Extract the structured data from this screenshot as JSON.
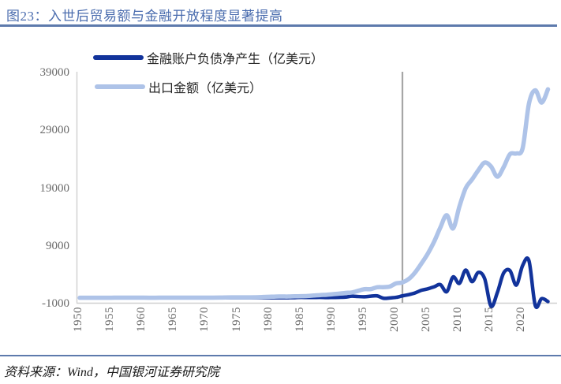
{
  "header": {
    "title": "图23：入世后贸易额与金融开放程度显著提高"
  },
  "footer": {
    "source": "资料来源：Wind，中国银河证券研究院"
  },
  "colors": {
    "title_blue": "#4A6CAE",
    "separator_blue": "#5D7AAC",
    "series_dark": "#12339B",
    "series_light": "#AEC3E8",
    "marker_gray": "#A6A6A6",
    "axis_gray": "#CFCFCF",
    "tick_text": "#6a6a6a"
  },
  "chart_data": {
    "type": "line",
    "title": "图23：入世后贸易额与金融开放程度显著提高",
    "xlabel": "",
    "ylabel": "",
    "xlim": [
      1950,
      2024
    ],
    "ylim": [
      -1000,
      39000
    ],
    "xticks": [
      1950,
      1955,
      1960,
      1965,
      1970,
      1975,
      1980,
      1985,
      1990,
      1995,
      2000,
      2005,
      2010,
      2015,
      2020
    ],
    "yticks": [
      -1000,
      9000,
      19000,
      29000,
      39000
    ],
    "grid": false,
    "legend_position": "top-left",
    "marker_line_year": 2001,
    "x": [
      1950,
      1951,
      1952,
      1953,
      1954,
      1955,
      1956,
      1957,
      1958,
      1959,
      1960,
      1961,
      1962,
      1963,
      1964,
      1965,
      1966,
      1967,
      1968,
      1969,
      1970,
      1971,
      1972,
      1973,
      1974,
      1975,
      1976,
      1977,
      1978,
      1979,
      1980,
      1981,
      1982,
      1983,
      1984,
      1985,
      1986,
      1987,
      1988,
      1989,
      1990,
      1991,
      1992,
      1993,
      1994,
      1995,
      1996,
      1997,
      1998,
      1999,
      2000,
      2001,
      2002,
      2003,
      2004,
      2005,
      2006,
      2007,
      2008,
      2009,
      2010,
      2011,
      2012,
      2013,
      2014,
      2015,
      2016,
      2017,
      2018,
      2019,
      2020,
      2021,
      2022,
      2023,
      2024
    ],
    "series": [
      {
        "name": "金融账户负债净产生（亿美元）",
        "color": "#12339B",
        "width": 4.5,
        "values": [
          0,
          0,
          0,
          0,
          0,
          0,
          0,
          0,
          0,
          0,
          0,
          0,
          0,
          0,
          0,
          0,
          0,
          0,
          0,
          0,
          0,
          0,
          0,
          0,
          0,
          0,
          0,
          0,
          0,
          0,
          0,
          0,
          10,
          15,
          30,
          80,
          50,
          60,
          70,
          40,
          60,
          80,
          120,
          280,
          220,
          180,
          280,
          330,
          -80,
          -30,
          80,
          330,
          550,
          850,
          1300,
          1550,
          1900,
          2280,
          1050,
          3600,
          2500,
          4800,
          2800,
          4400,
          3300,
          -1450,
          900,
          4300,
          4700,
          2200,
          5600,
          6400,
          -1350,
          -150,
          -650
        ]
      },
      {
        "name": "出口金额（亿美元）",
        "color": "#AEC3E8",
        "width": 5.5,
        "values": [
          6,
          8,
          8,
          10,
          12,
          14,
          17,
          16,
          20,
          23,
          19,
          15,
          15,
          17,
          19,
          22,
          24,
          21,
          21,
          22,
          23,
          26,
          34,
          58,
          70,
          73,
          69,
          76,
          98,
          137,
          181,
          220,
          223,
          222,
          261,
          274,
          309,
          394,
          475,
          525,
          621,
          719,
          849,
          917,
          1210,
          1488,
          1511,
          1828,
          1837,
          1949,
          2492,
          2661,
          3256,
          4382,
          5933,
          7620,
          9690,
          12178,
          14307,
          12016,
          15778,
          18984,
          20487,
          22090,
          23422,
          22735,
          20976,
          22633,
          24874,
          24990,
          25900,
          33640,
          35936,
          33800,
          36100
        ]
      }
    ]
  }
}
